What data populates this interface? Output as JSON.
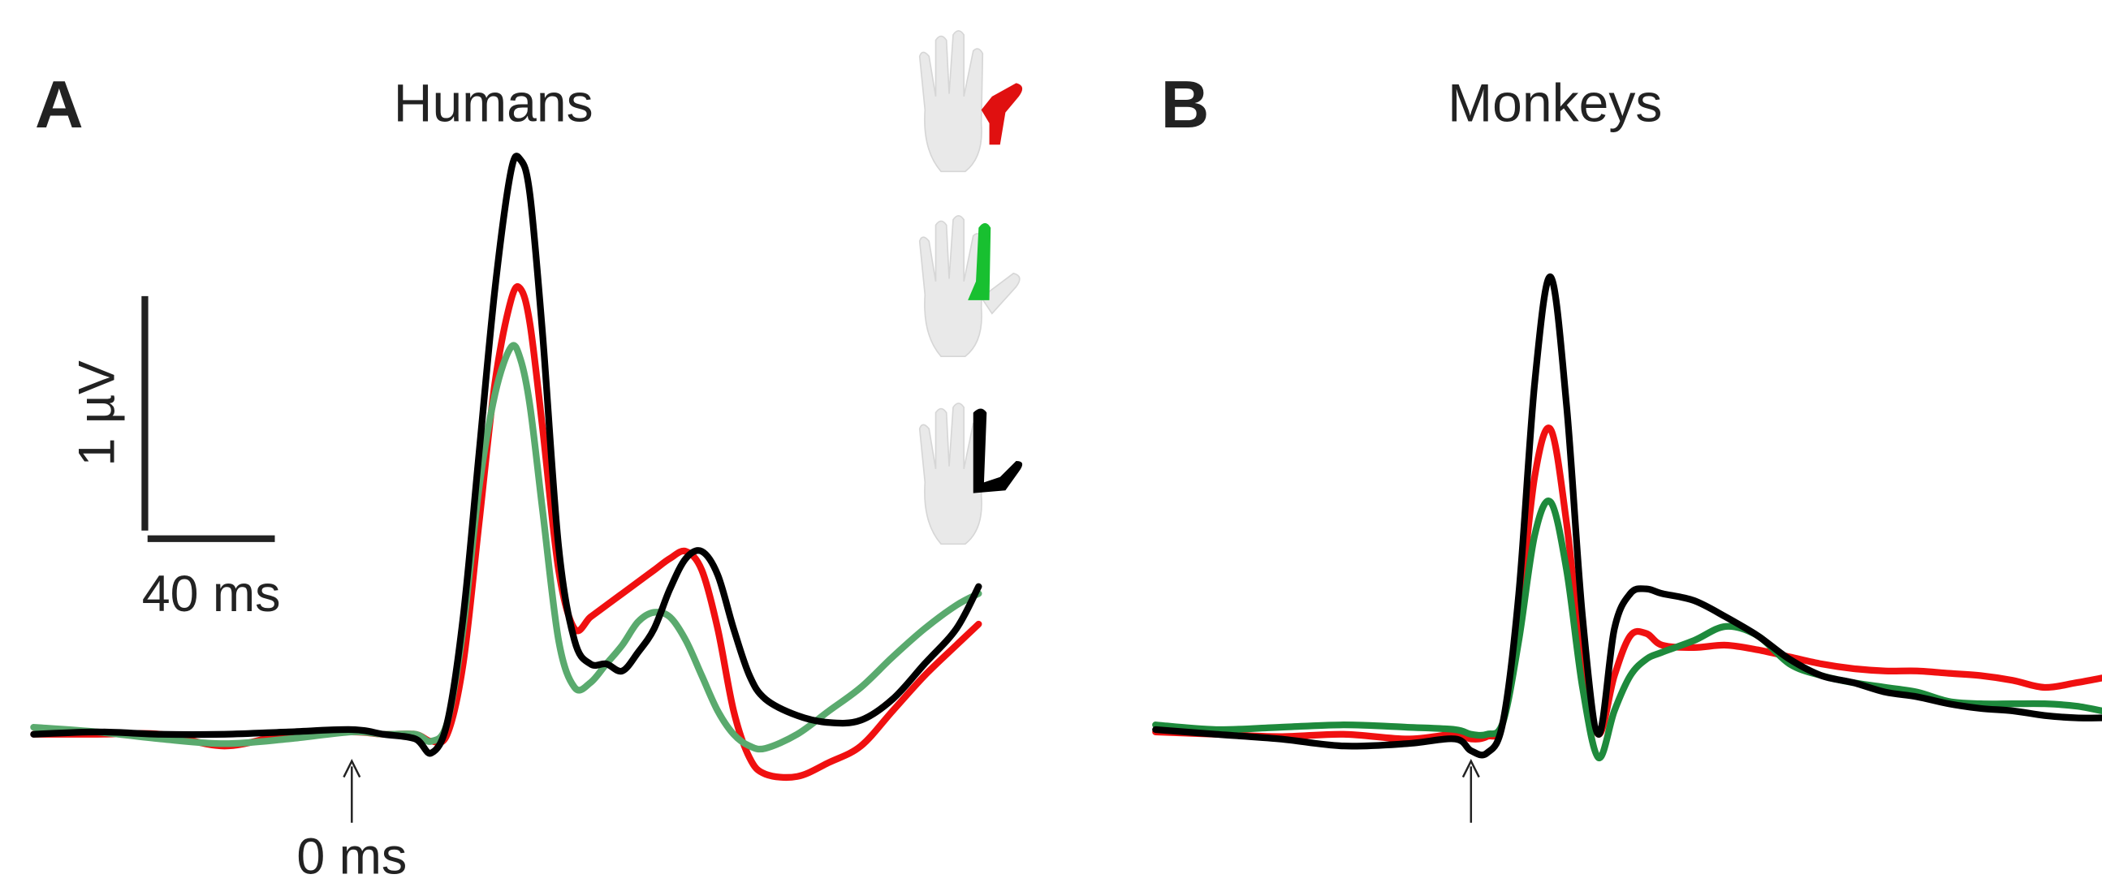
{
  "chart_data": [
    {
      "type": "line",
      "panel": "A",
      "title": "Humans",
      "x": [
        -100,
        -80,
        -60,
        -40,
        -20,
        0,
        10,
        20,
        25,
        30,
        35,
        40,
        45,
        50,
        53,
        56,
        60,
        65,
        70,
        75,
        80,
        85,
        90,
        95,
        100,
        105,
        110,
        115,
        120,
        125,
        130,
        140,
        150,
        160,
        170,
        180,
        190,
        197
      ],
      "series": [
        {
          "color": "#f01010",
          "values": [
            0,
            0,
            0,
            -0.05,
            0,
            0.01,
            0,
            0,
            -0.03,
            0,
            0.3,
            0.9,
            1.5,
            1.85,
            1.9,
            1.75,
            1.3,
            0.7,
            0.45,
            0.5,
            0.55,
            0.6,
            0.65,
            0.7,
            0.75,
            0.78,
            0.7,
            0.45,
            0.1,
            -0.1,
            -0.17,
            -0.18,
            -0.12,
            -0.05,
            0.1,
            0.25,
            0.38,
            0.47
          ]
        },
        {
          "color": "#5aaa6e",
          "values": [
            0.03,
            0.01,
            -0.02,
            -0.04,
            -0.02,
            0.01,
            0,
            0,
            -0.03,
            0.05,
            0.45,
            1.05,
            1.45,
            1.65,
            1.6,
            1.4,
            0.95,
            0.4,
            0.2,
            0.22,
            0.3,
            0.38,
            0.48,
            0.52,
            0.5,
            0.4,
            0.25,
            0.1,
            0,
            -0.05,
            -0.06,
            0,
            0.1,
            0.2,
            0.33,
            0.45,
            0.55,
            0.6
          ]
        },
        {
          "color": "#000000",
          "values": [
            0,
            0.01,
            0,
            0,
            0.01,
            0.02,
            0,
            -0.02,
            -0.08,
            0.05,
            0.5,
            1.2,
            1.9,
            2.4,
            2.45,
            2.3,
            1.7,
            0.8,
            0.4,
            0.3,
            0.3,
            0.27,
            0.35,
            0.45,
            0.62,
            0.75,
            0.78,
            0.68,
            0.45,
            0.25,
            0.15,
            0.08,
            0.05,
            0.06,
            0.15,
            0.3,
            0.45,
            0.63
          ]
        }
      ],
      "xlim": [
        -100,
        197
      ],
      "ylim": [
        -0.5,
        2.5
      ],
      "scale_bar": {
        "y": {
          "value": 1,
          "label": "1 µV"
        },
        "x": {
          "value": 40,
          "label": "40 ms"
        }
      },
      "stim_marker": {
        "value": 0,
        "label": "0 ms"
      }
    },
    {
      "type": "line",
      "panel": "B",
      "title": "Monkeys",
      "x": [
        -99,
        -80,
        -60,
        -40,
        -20,
        -5,
        0,
        5,
        10,
        15,
        20,
        25,
        30,
        35,
        40,
        45,
        50,
        55,
        60,
        70,
        80,
        90,
        100,
        110,
        120,
        130,
        140,
        150,
        160,
        170,
        180,
        190,
        198
      ],
      "series": [
        {
          "color": "#f01010",
          "values": [
            0.01,
            0,
            -0.01,
            0,
            -0.02,
            0,
            -0.02,
            -0.01,
            0.05,
            0.5,
            1.1,
            1.3,
            0.9,
            0.3,
            0,
            0.25,
            0.42,
            0.43,
            0.38,
            0.37,
            0.38,
            0.36,
            0.33,
            0.3,
            0.28,
            0.27,
            0.27,
            0.26,
            0.25,
            0.23,
            0.2,
            0.22,
            0.24
          ]
        },
        {
          "color": "#1e8a3c",
          "values": [
            0.04,
            0.02,
            0.03,
            0.04,
            0.03,
            0.02,
            0,
            0,
            0.05,
            0.4,
            0.85,
            0.99,
            0.7,
            0.2,
            -0.1,
            0.1,
            0.25,
            0.32,
            0.35,
            0.4,
            0.46,
            0.42,
            0.3,
            0.25,
            0.22,
            0.2,
            0.18,
            0.14,
            0.13,
            0.13,
            0.13,
            0.12,
            0.1
          ]
        },
        {
          "color": "#000000",
          "values": [
            0.02,
            0,
            -0.02,
            -0.05,
            -0.04,
            -0.02,
            -0.07,
            -0.08,
            0.05,
            0.6,
            1.5,
            1.95,
            1.4,
            0.5,
            0,
            0.45,
            0.6,
            0.62,
            0.6,
            0.57,
            0.5,
            0.42,
            0.32,
            0.25,
            0.22,
            0.18,
            0.16,
            0.13,
            0.11,
            0.1,
            0.08,
            0.07,
            0.07
          ]
        }
      ],
      "xlim": [
        -99,
        198
      ],
      "ylim": [
        -0.5,
        2.5
      ],
      "stim_marker": 0
    }
  ]
}
